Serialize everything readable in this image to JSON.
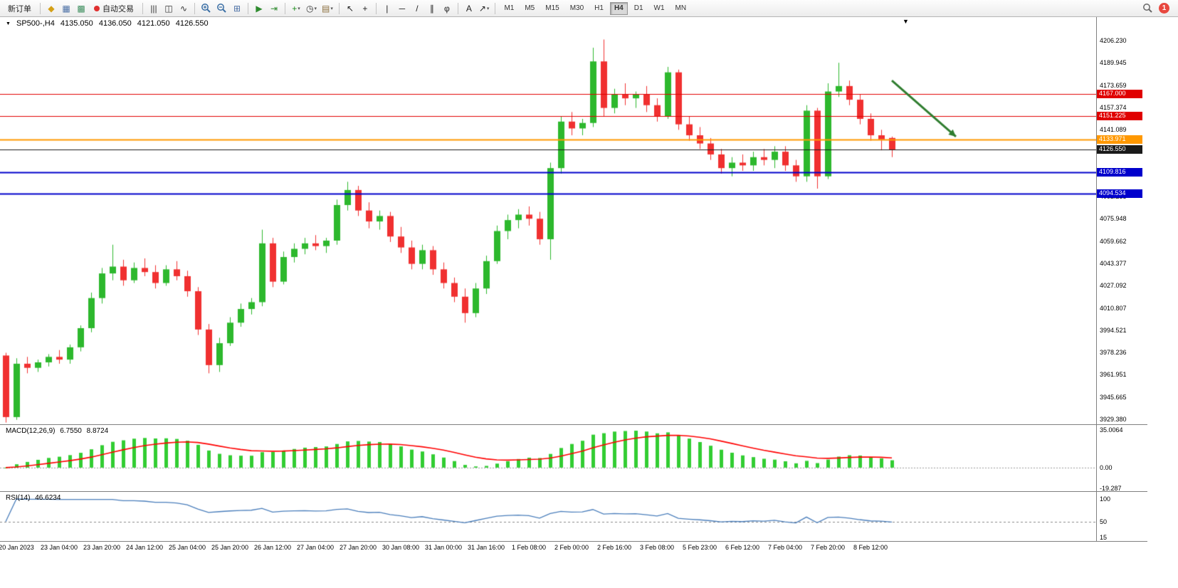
{
  "colors": {
    "bull": "#2DB82D",
    "bear": "#F03030",
    "macd_hist": "#32CD32",
    "macd_signal": "#FF0000",
    "rsi_line": "#4A7EBB",
    "zero_line": "#999999",
    "axis_text": "#000000"
  },
  "toolbar": {
    "caret_glyph": "▾",
    "timeframes": [
      "M1",
      "M5",
      "M15",
      "M30",
      "H1",
      "H4",
      "D1",
      "W1",
      "MN"
    ],
    "active_timeframe": "H4",
    "notification_count": "1",
    "items": [
      {
        "type": "text-button",
        "name": "new-order-button",
        "label": "新订单"
      },
      {
        "type": "sep"
      },
      {
        "type": "icon",
        "name": "profiles-icon",
        "glyph": "◆",
        "color": "#d4a017"
      },
      {
        "type": "icon",
        "name": "market-watch-icon",
        "glyph": "▦",
        "color": "#4a6fa5"
      },
      {
        "type": "icon",
        "name": "data-window-icon",
        "glyph": "▩",
        "color": "#3f8f5f"
      },
      {
        "type": "text-button",
        "name": "auto-trading-button",
        "label": "自动交易",
        "dot": "#e03030"
      },
      {
        "type": "sep"
      },
      {
        "type": "icon",
        "name": "bar-chart-icon",
        "glyph": "|||",
        "color": "#333333"
      },
      {
        "type": "icon",
        "name": "candlestick-icon",
        "glyph": "◫",
        "color": "#333333"
      },
      {
        "type": "icon",
        "name": "line-chart-icon",
        "glyph": "∿",
        "color": "#333333"
      },
      {
        "type": "sep"
      },
      {
        "type": "svg",
        "name": "zoom-in-icon",
        "svg": "zoom-in"
      },
      {
        "type": "svg",
        "name": "zoom-out-icon",
        "svg": "zoom-out"
      },
      {
        "type": "icon",
        "name": "tile-windows-icon",
        "glyph": "⊞",
        "color": "#4a6fa5"
      },
      {
        "type": "sep"
      },
      {
        "type": "icon",
        "name": "auto-scroll-icon",
        "glyph": "▶",
        "color": "#2e8b2e"
      },
      {
        "type": "icon",
        "name": "chart-shift-icon",
        "glyph": "⇥",
        "color": "#2e8b2e"
      },
      {
        "type": "sep"
      },
      {
        "type": "icon",
        "name": "indicators-icon",
        "glyph": "+",
        "color": "#1a8c1a",
        "caret": true
      },
      {
        "type": "icon",
        "name": "periods-icon",
        "glyph": "◷",
        "color": "#333333",
        "caret": true
      },
      {
        "type": "icon",
        "name": "templates-icon",
        "glyph": "▤",
        "color": "#8a6d3b",
        "caret": true
      },
      {
        "type": "sep"
      },
      {
        "type": "icon",
        "name": "cursor-icon",
        "glyph": "↖",
        "color": "#222222"
      },
      {
        "type": "icon",
        "name": "crosshair-icon",
        "glyph": "+",
        "color": "#222222"
      },
      {
        "type": "sep"
      },
      {
        "type": "icon",
        "name": "vertical-line-icon",
        "glyph": "|",
        "color": "#222222"
      },
      {
        "type": "icon",
        "name": "horizontal-line-icon",
        "glyph": "─",
        "color": "#222222"
      },
      {
        "type": "icon",
        "name": "trendline-icon",
        "glyph": "/",
        "color": "#222222"
      },
      {
        "type": "icon",
        "name": "channel-icon",
        "glyph": "∥",
        "color": "#222222"
      },
      {
        "type": "icon",
        "name": "fibonacci-icon",
        "glyph": "φ",
        "color": "#222222"
      },
      {
        "type": "sep"
      },
      {
        "type": "icon",
        "name": "text-icon",
        "glyph": "A",
        "color": "#222222"
      },
      {
        "type": "icon",
        "name": "arrows-icon",
        "glyph": "↗",
        "color": "#222222",
        "caret": true
      },
      {
        "type": "sep"
      },
      {
        "type": "timeframes"
      },
      {
        "type": "spacer"
      },
      {
        "type": "svg",
        "name": "search-icon",
        "svg": "search"
      },
      {
        "type": "badge",
        "name": "notification-badge"
      }
    ]
  },
  "chart": {
    "shift_marker_glyph": "▼",
    "header": {
      "marker_glyph": "▼",
      "symbol_period": "SP500-,H4",
      "open": "4135.050",
      "high": "4136.050",
      "low": "4121.050",
      "close": "4126.550"
    },
    "price_axis": [
      "4206.230",
      "4189.945",
      "4173.659",
      "4157.374",
      "4141.089",
      "4124.804",
      "4108.518",
      "4092.233",
      "4075.948",
      "4059.662",
      "4043.377",
      "4027.092",
      "4010.807",
      "3994.521",
      "3978.236",
      "3961.951",
      "3945.665",
      "3929.380"
    ],
    "macd": {
      "label": "MACD(12,26,9)",
      "value_main": "6.7550",
      "value_signal": "8.8724",
      "axis": [
        {
          "label": "35.0064",
          "value": 35.0064
        },
        {
          "label": "0.00",
          "value": 0
        },
        {
          "label": "-19.287",
          "value": -19.287
        }
      ]
    },
    "rsi": {
      "label": "RSI(14)",
      "value": "46.6234",
      "axis": [
        {
          "label": "100",
          "value": 100
        },
        {
          "label": "50",
          "value": 50
        },
        {
          "label": "15",
          "value": 15
        }
      ]
    }
  },
  "chart_data": {
    "type": "candlestick",
    "symbol": "SP500-",
    "timeframe": "H4",
    "y_axis": {
      "min": 3929.38,
      "max": 4206.23
    },
    "current_bar_ohlc": {
      "open": 4135.05,
      "high": 4136.05,
      "low": 4121.05,
      "close": 4126.55
    },
    "candles": [
      [
        3976,
        3978,
        3927,
        3931
      ],
      [
        3931,
        3974,
        3929,
        3970
      ],
      [
        3970,
        3975,
        3963,
        3967
      ],
      [
        3967,
        3973,
        3964,
        3971
      ],
      [
        3971,
        3977,
        3968,
        3975
      ],
      [
        3975,
        3980,
        3970,
        3973
      ],
      [
        3973,
        3984,
        3970,
        3982
      ],
      [
        3982,
        3998,
        3979,
        3996
      ],
      [
        3996,
        4022,
        3993,
        4018
      ],
      [
        4018,
        4040,
        4014,
        4036
      ],
      [
        4036,
        4057,
        4031,
        4041
      ],
      [
        4041,
        4046,
        4027,
        4031
      ],
      [
        4031,
        4044,
        4029,
        4040
      ],
      [
        4040,
        4047,
        4034,
        4037
      ],
      [
        4037,
        4042,
        4025,
        4029
      ],
      [
        4029,
        4042,
        4027,
        4039
      ],
      [
        4039,
        4045,
        4031,
        4034
      ],
      [
        4034,
        4038,
        4019,
        4023
      ],
      [
        4023,
        4026,
        3991,
        3995
      ],
      [
        3995,
        3999,
        3963,
        3969
      ],
      [
        3969,
        3989,
        3964,
        3985
      ],
      [
        3985,
        4004,
        3983,
        4000
      ],
      [
        4000,
        4014,
        3997,
        4010
      ],
      [
        4010,
        4018,
        4006,
        4015
      ],
      [
        4015,
        4068,
        4012,
        4058
      ],
      [
        4058,
        4062,
        4026,
        4030
      ],
      [
        4030,
        4052,
        4028,
        4048
      ],
      [
        4048,
        4058,
        4044,
        4054
      ],
      [
        4054,
        4062,
        4050,
        4058
      ],
      [
        4058,
        4064,
        4053,
        4056
      ],
      [
        4056,
        4062,
        4051,
        4060
      ],
      [
        4060,
        4090,
        4057,
        4086
      ],
      [
        4086,
        4103,
        4082,
        4097
      ],
      [
        4097,
        4100,
        4078,
        4082
      ],
      [
        4082,
        4088,
        4069,
        4074
      ],
      [
        4074,
        4082,
        4068,
        4078
      ],
      [
        4078,
        4081,
        4059,
        4063
      ],
      [
        4063,
        4070,
        4051,
        4055
      ],
      [
        4055,
        4060,
        4039,
        4043
      ],
      [
        4043,
        4057,
        4039,
        4053
      ],
      [
        4053,
        4056,
        4035,
        4039
      ],
      [
        4039,
        4044,
        4025,
        4029
      ],
      [
        4029,
        4033,
        4015,
        4019
      ],
      [
        4019,
        4025,
        4000,
        4007
      ],
      [
        4007,
        4029,
        4004,
        4025
      ],
      [
        4025,
        4049,
        4021,
        4045
      ],
      [
        4045,
        4071,
        4043,
        4067
      ],
      [
        4067,
        4079,
        4061,
        4075
      ],
      [
        4075,
        4083,
        4069,
        4079
      ],
      [
        4079,
        4085,
        4071,
        4076
      ],
      [
        4076,
        4081,
        4057,
        4061
      ],
      [
        4061,
        4117,
        4046,
        4113
      ],
      [
        4113,
        4151,
        4109,
        4147
      ],
      [
        4147,
        4154,
        4137,
        4142
      ],
      [
        4142,
        4149,
        4137,
        4146
      ],
      [
        4146,
        4201,
        4143,
        4191
      ],
      [
        4191,
        4207,
        4151,
        4157
      ],
      [
        4157,
        4171,
        4153,
        4167
      ],
      [
        4167,
        4175,
        4159,
        4164
      ],
      [
        4164,
        4169,
        4157,
        4167
      ],
      [
        4167,
        4173,
        4154,
        4159
      ],
      [
        4159,
        4164,
        4147,
        4151
      ],
      [
        4151,
        4187,
        4149,
        4183
      ],
      [
        4183,
        4185,
        4141,
        4145
      ],
      [
        4145,
        4151,
        4133,
        4137
      ],
      [
        4137,
        4143,
        4127,
        4131
      ],
      [
        4131,
        4135,
        4119,
        4123
      ],
      [
        4123,
        4127,
        4109,
        4113
      ],
      [
        4113,
        4121,
        4107,
        4117
      ],
      [
        4117,
        4123,
        4111,
        4115
      ],
      [
        4115,
        4125,
        4111,
        4121
      ],
      [
        4121,
        4127,
        4115,
        4119
      ],
      [
        4119,
        4129,
        4113,
        4125
      ],
      [
        4125,
        4129,
        4111,
        4115
      ],
      [
        4115,
        4119,
        4103,
        4107
      ],
      [
        4107,
        4159,
        4103,
        4155
      ],
      [
        4155,
        4157,
        4098,
        4107
      ],
      [
        4107,
        4175,
        4105,
        4169
      ],
      [
        4169,
        4190,
        4165,
        4173
      ],
      [
        4173,
        4177,
        4159,
        4163
      ],
      [
        4163,
        4167,
        4145,
        4149
      ],
      [
        4149,
        4153,
        4133,
        4137
      ],
      [
        4137,
        4141,
        4126,
        4134
      ],
      [
        4135.05,
        4136.05,
        4121.05,
        4126.55
      ]
    ],
    "horizontal_levels": [
      {
        "label": "4167.000",
        "price": 4167.0,
        "color": "#E00000",
        "line_width": 1
      },
      {
        "label": "4151.225",
        "price": 4151.225,
        "color": "#E00000",
        "line_width": 1
      },
      {
        "label": "4133.971",
        "price": 4133.971,
        "color": "#FF9800",
        "line_width": 2
      },
      {
        "label": "4126.550",
        "price": 4126.55,
        "color": "#1A1A1A",
        "line_width": 1,
        "role": "bid"
      },
      {
        "label": "4109.816",
        "price": 4109.816,
        "color": "#0000CC",
        "line_width": 2
      },
      {
        "label": "4094.534",
        "price": 4094.534,
        "color": "#0000CC",
        "line_width": 2
      }
    ],
    "trend_arrow": {
      "from_bar": 83,
      "from_price": 4177,
      "to_bar": 89,
      "to_price": 4136,
      "color": "#2F7D2F"
    },
    "indicators": [
      {
        "name": "MACD",
        "params": [
          12,
          26,
          9
        ],
        "main": 6.755,
        "signal": 8.8724
      },
      {
        "name": "RSI",
        "params": [
          14
        ],
        "value": 46.6234
      }
    ],
    "x_axis_labels": [
      {
        "bar": 1,
        "label": "20 Jan 2023"
      },
      {
        "bar": 5,
        "label": "23 Jan 04:00"
      },
      {
        "bar": 9,
        "label": "23 Jan 20:00"
      },
      {
        "bar": 13,
        "label": "24 Jan 12:00"
      },
      {
        "bar": 17,
        "label": "25 Jan 04:00"
      },
      {
        "bar": 21,
        "label": "25 Jan 20:00"
      },
      {
        "bar": 25,
        "label": "26 Jan 12:00"
      },
      {
        "bar": 29,
        "label": "27 Jan 04:00"
      },
      {
        "bar": 33,
        "label": "27 Jan 20:00"
      },
      {
        "bar": 37,
        "label": "30 Jan 08:00"
      },
      {
        "bar": 41,
        "label": "31 Jan 00:00"
      },
      {
        "bar": 45,
        "label": "31 Jan 16:00"
      },
      {
        "bar": 49,
        "label": "1 Feb 08:00"
      },
      {
        "bar": 53,
        "label": "2 Feb 00:00"
      },
      {
        "bar": 57,
        "label": "2 Feb 16:00"
      },
      {
        "bar": 61,
        "label": "3 Feb 08:00"
      },
      {
        "bar": 65,
        "label": "5 Feb 23:00"
      },
      {
        "bar": 69,
        "label": "6 Feb 12:00"
      },
      {
        "bar": 73,
        "label": "7 Feb 04:00"
      },
      {
        "bar": 77,
        "label": "7 Feb 20:00"
      },
      {
        "bar": 81,
        "label": "8 Feb 12:00"
      }
    ]
  }
}
